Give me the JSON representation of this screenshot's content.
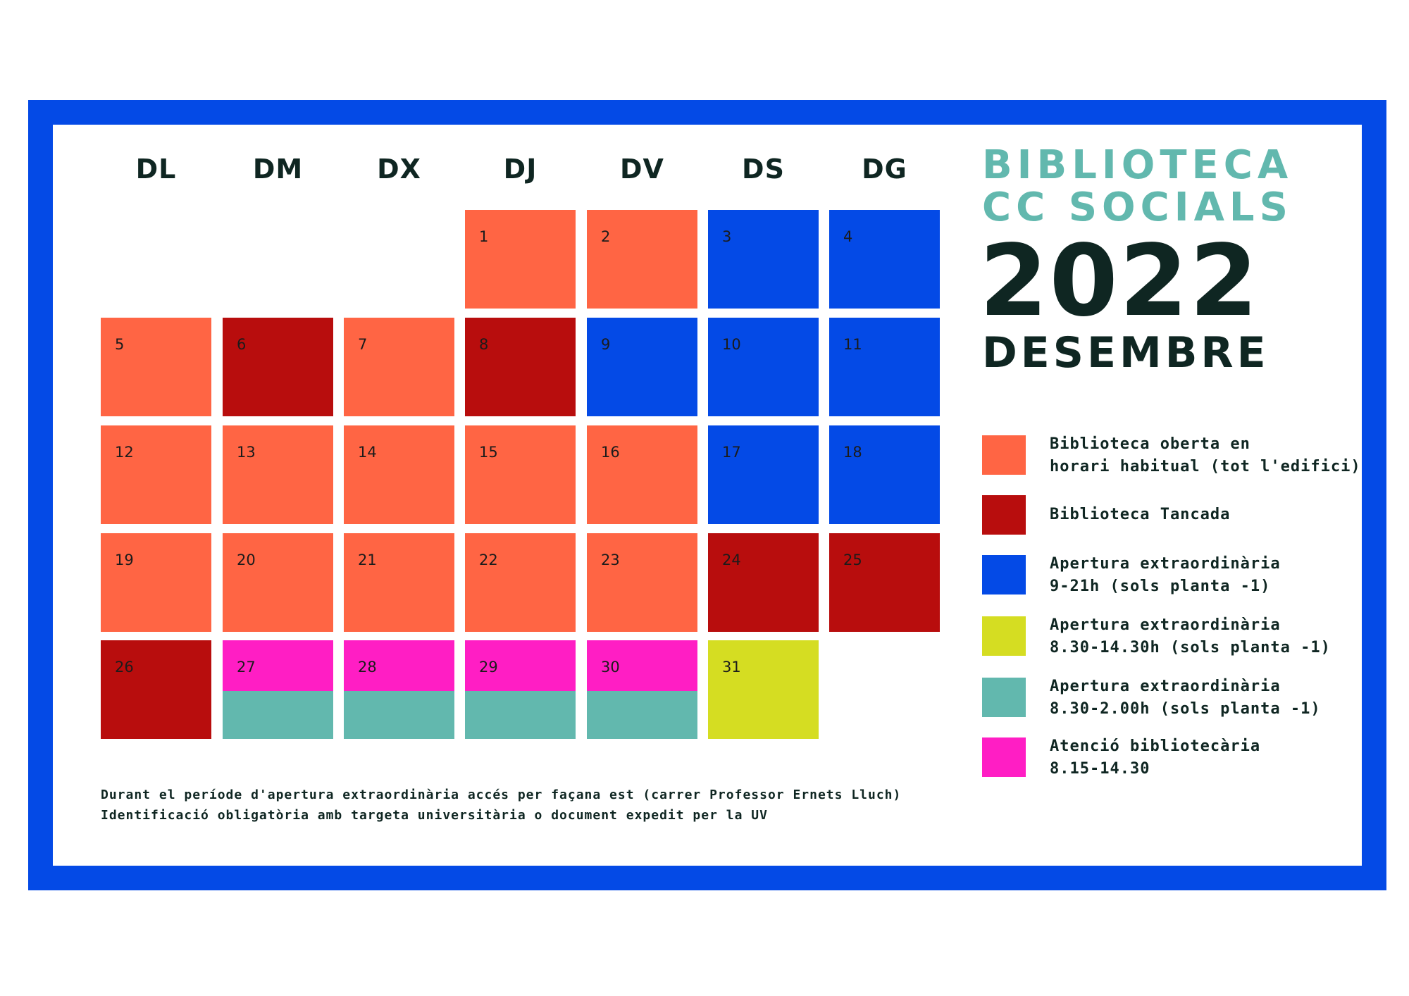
{
  "colors": {
    "frame": "#044ae6",
    "open": "#ff6544",
    "closed": "#b80d0d",
    "extra_9_21": "#044ae6",
    "extra_830_1430": "#d5dd22",
    "extra_830_200": "#62b8ae",
    "attention": "#ff1ec4",
    "title_teal": "#62b8ae",
    "dark_text": "#0f2622"
  },
  "header": {
    "title_line1": "BIBLIOTECA",
    "title_line2": "CC SOCIALS",
    "year": "2022",
    "month": "DESEMBRE"
  },
  "weekdays": [
    "DL",
    "DM",
    "DX",
    "DJ",
    "DV",
    "DS",
    "DG"
  ],
  "days": [
    {
      "day": "1",
      "status": "open"
    },
    {
      "day": "2",
      "status": "open"
    },
    {
      "day": "3",
      "status": "extra_9_21"
    },
    {
      "day": "4",
      "status": "extra_9_21"
    },
    {
      "day": "5",
      "status": "open"
    },
    {
      "day": "6",
      "status": "closed"
    },
    {
      "day": "7",
      "status": "open"
    },
    {
      "day": "8",
      "status": "closed"
    },
    {
      "day": "9",
      "status": "extra_9_21"
    },
    {
      "day": "10",
      "status": "extra_9_21"
    },
    {
      "day": "11",
      "status": "extra_9_21"
    },
    {
      "day": "12",
      "status": "open"
    },
    {
      "day": "13",
      "status": "open"
    },
    {
      "day": "14",
      "status": "open"
    },
    {
      "day": "15",
      "status": "open"
    },
    {
      "day": "16",
      "status": "open"
    },
    {
      "day": "17",
      "status": "extra_9_21"
    },
    {
      "day": "18",
      "status": "extra_9_21"
    },
    {
      "day": "19",
      "status": "open"
    },
    {
      "day": "20",
      "status": "open"
    },
    {
      "day": "21",
      "status": "open"
    },
    {
      "day": "22",
      "status": "open"
    },
    {
      "day": "23",
      "status": "open"
    },
    {
      "day": "24",
      "status": "closed"
    },
    {
      "day": "25",
      "status": "closed"
    },
    {
      "day": "26",
      "status": "closed"
    },
    {
      "day": "27",
      "status": "attention",
      "also": "extra_830_200"
    },
    {
      "day": "28",
      "status": "attention",
      "also": "extra_830_200"
    },
    {
      "day": "29",
      "status": "attention",
      "also": "extra_830_200"
    },
    {
      "day": "30",
      "status": "attention",
      "also": "extra_830_200"
    },
    {
      "day": "31",
      "status": "extra_830_1430"
    }
  ],
  "legend": [
    {
      "key": "open",
      "line1": "Biblioteca oberta en",
      "line2": "horari habitual (tot l'edifici)"
    },
    {
      "key": "closed",
      "line1": "Biblioteca Tancada",
      "line2": ""
    },
    {
      "key": "extra_9_21",
      "line1": "Apertura extraordinària",
      "line2": "9-21h (sols planta -1)"
    },
    {
      "key": "extra_830_1430",
      "line1": "Apertura extraordinària",
      "line2": "8.30-14.30h (sols planta -1)"
    },
    {
      "key": "extra_830_200",
      "line1": "Apertura extraordinària",
      "line2": "8.30-2.00h (sols planta -1)"
    },
    {
      "key": "attention",
      "line1": "Atenció bibliotecària",
      "line2": "8.15-14.30"
    }
  ],
  "notes": {
    "line1": "Durant el període d'apertura extraordinària accés per façana est (carrer Professor Ernets Lluch)",
    "line2": "Identificació obligatòria amb targeta universitària o document expedit per la UV"
  }
}
